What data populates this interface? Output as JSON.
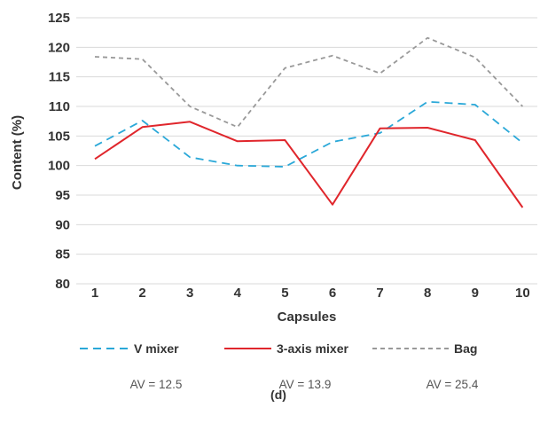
{
  "chart_data": {
    "type": "line",
    "xlabel": "Capsules",
    "ylabel": "Content (%)",
    "categories": [
      "1",
      "2",
      "3",
      "4",
      "5",
      "6",
      "7",
      "8",
      "9",
      "10"
    ],
    "ylim": [
      80,
      125
    ],
    "yticks": [
      "80",
      "85",
      "90",
      "95",
      "100",
      "105",
      "110",
      "115",
      "120",
      "125"
    ],
    "grid": true,
    "legend_position": "bottom",
    "series": [
      {
        "name": "V mixer",
        "color": "#2aa8d8",
        "dash": "long-dash",
        "values": [
          103.3,
          107.6,
          101.4,
          100.0,
          99.8,
          104.0,
          105.5,
          110.8,
          110.3,
          103.8
        ]
      },
      {
        "name": "3-axis mixer",
        "color": "#e0262c",
        "dash": "solid",
        "values": [
          101.1,
          106.5,
          107.4,
          104.1,
          104.3,
          93.4,
          106.3,
          106.4,
          104.3,
          92.9
        ]
      },
      {
        "name": "Bag",
        "color": "#999999",
        "dash": "short-dash",
        "values": [
          118.4,
          118.0,
          110.0,
          106.5,
          116.5,
          118.6,
          115.6,
          121.6,
          118.3,
          110.0
        ]
      }
    ],
    "annotations": [
      "AV = 12.5",
      "AV = 13.9",
      "AV = 25.4"
    ],
    "caption": "(d)"
  }
}
